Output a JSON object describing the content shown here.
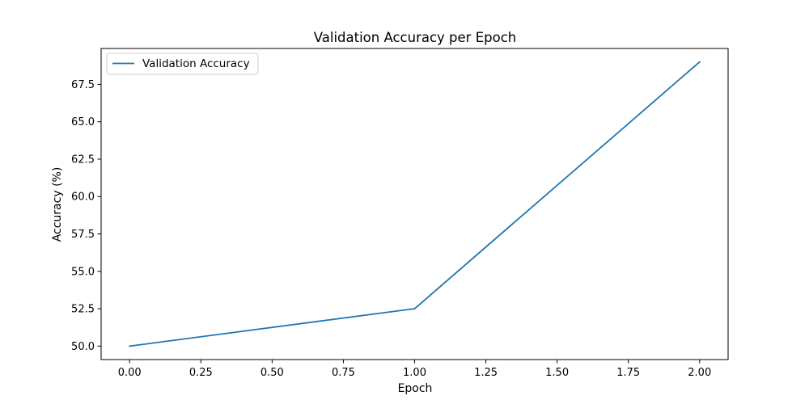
{
  "chart_data": {
    "type": "line",
    "title": "Validation Accuracy per Epoch",
    "xlabel": "Epoch",
    "ylabel": "Accuracy (%)",
    "x": [
      0,
      1,
      2
    ],
    "series": [
      {
        "name": "Validation Accuracy",
        "values": [
          50.0,
          52.5,
          69.0
        ],
        "color": "#1f77b4"
      }
    ],
    "xlim": [
      -0.1,
      2.1
    ],
    "ylim": [
      49.1,
      69.9
    ],
    "xticks": [
      "0.00",
      "0.25",
      "0.50",
      "0.75",
      "1.00",
      "1.25",
      "1.50",
      "1.75",
      "2.00"
    ],
    "yticks": [
      "50.0",
      "52.5",
      "55.0",
      "57.5",
      "60.0",
      "62.5",
      "65.0",
      "67.5"
    ],
    "grid": false,
    "legend_position": "top-left"
  }
}
